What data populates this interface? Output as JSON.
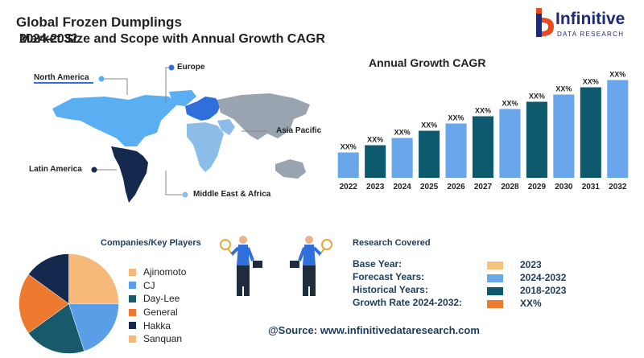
{
  "header": {
    "title_line1": "Global Frozen Dumplings",
    "title_line2": "Market Size and Scope with Annual Growth CAGR",
    "title_line2_overlay": "2024-2032"
  },
  "logo": {
    "name": "Infinitive",
    "sub": "DATA RESEARCH"
  },
  "map": {
    "regions": [
      "North America",
      "Europe",
      "Asia Pacific",
      "Latin America",
      "Middle East & Africa"
    ]
  },
  "chart_data": {
    "type": "bar",
    "title": "Annual Growth CAGR",
    "categories": [
      "2022",
      "2023",
      "2024",
      "2025",
      "2026",
      "2027",
      "2028",
      "2029",
      "2030",
      "2031",
      "2032"
    ],
    "values": [
      3.5,
      4.5,
      5.5,
      6.5,
      7.5,
      8.5,
      9.5,
      10.5,
      11.5,
      12.5,
      13.5
    ],
    "data_labels": [
      "XX%",
      "XX%",
      "XX%",
      "XX%",
      "XX%",
      "XX%",
      "XX%",
      "XX%",
      "XX%",
      "XX%",
      "XX%"
    ],
    "colors": [
      "#6aa6ec",
      "#0d5a6e",
      "#6aa6ec",
      "#0d5a6e",
      "#6aa6ec",
      "#0d5a6e",
      "#6aa6ec",
      "#0d5a6e",
      "#6aa6ec",
      "#0d5a6e",
      "#6aa6ec"
    ],
    "ylim": [
      0,
      14
    ],
    "grid": false
  },
  "players": {
    "title": "Companies/Key Players",
    "items": [
      {
        "name": "Ajinomoto",
        "color": "#f7b97a",
        "share": 25
      },
      {
        "name": "CJ",
        "color": "#5b9ee8",
        "share": 20
      },
      {
        "name": "Day-Lee",
        "color": "#185a6b",
        "share": 20
      },
      {
        "name": "General",
        "color": "#ee7a30",
        "share": 20
      },
      {
        "name": "Hakka",
        "color": "#14294d",
        "share": 15
      },
      {
        "name": "Sanquan",
        "color": "#f7b97a",
        "share": 0
      }
    ]
  },
  "research": {
    "title": "Research Covered",
    "rows": [
      {
        "key": "Base Year:",
        "value": "2023",
        "color": "#f7c27e"
      },
      {
        "key": "Forecast Years:",
        "value": "2024-2032",
        "color": "#6aa6ec"
      },
      {
        "key": "Historical Years:",
        "value": "2018-2023",
        "color": "#0d5a6e"
      },
      {
        "key": "Growth Rate 2024-2032:",
        "value": "XX%",
        "color": "#ee7a30"
      }
    ]
  },
  "source": "@Source: www.infinitivedataresearch.com"
}
